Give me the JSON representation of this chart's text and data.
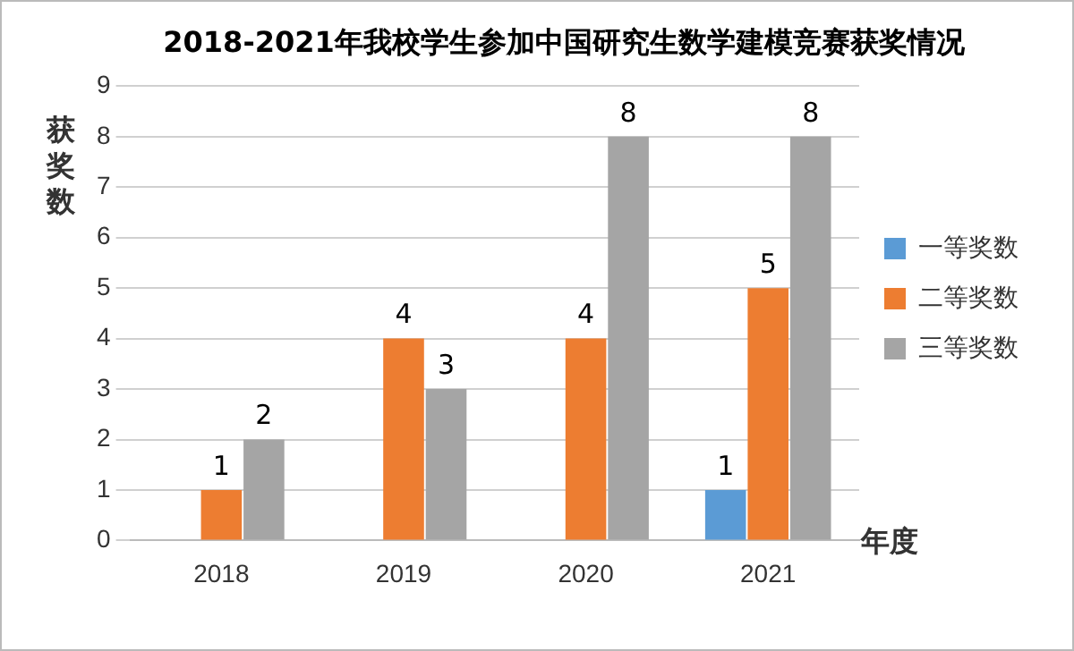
{
  "chart_data": {
    "type": "bar",
    "title": "2018-2021年我校学生参加中国研究生数学建模竞赛获奖情况",
    "ylabel": "获奖数",
    "xlabel": "年度",
    "categories": [
      "2018",
      "2019",
      "2020",
      "2021"
    ],
    "series": [
      {
        "name": "一等奖数",
        "color": "#5b9bd5",
        "values": [
          0,
          0,
          0,
          1
        ],
        "value_labels": [
          null,
          null,
          null,
          "1"
        ]
      },
      {
        "name": "二等奖数",
        "color": "#ed7d31",
        "values": [
          1,
          4,
          4,
          5
        ],
        "value_labels": [
          "1",
          "4",
          "4",
          "5"
        ]
      },
      {
        "name": "三等奖数",
        "color": "#a5a5a5",
        "values": [
          2,
          3,
          8,
          8
        ],
        "value_labels": [
          "2",
          "3",
          "8",
          "8"
        ]
      }
    ],
    "ylim": [
      0,
      9
    ],
    "yticks": [
      0,
      1,
      2,
      3,
      4,
      5,
      6,
      7,
      8,
      9
    ],
    "grid": "y",
    "legend": "right"
  }
}
